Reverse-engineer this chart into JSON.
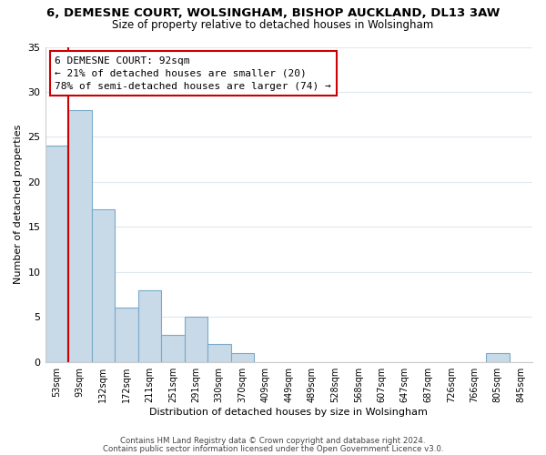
{
  "title": "6, DEMESNE COURT, WOLSINGHAM, BISHOP AUCKLAND, DL13 3AW",
  "subtitle": "Size of property relative to detached houses in Wolsingham",
  "xlabel": "Distribution of detached houses by size in Wolsingham",
  "ylabel": "Number of detached properties",
  "bin_labels": [
    "53sqm",
    "93sqm",
    "132sqm",
    "172sqm",
    "211sqm",
    "251sqm",
    "291sqm",
    "330sqm",
    "370sqm",
    "409sqm",
    "449sqm",
    "489sqm",
    "528sqm",
    "568sqm",
    "607sqm",
    "647sqm",
    "687sqm",
    "726sqm",
    "766sqm",
    "805sqm",
    "845sqm"
  ],
  "bar_values": [
    24,
    28,
    17,
    6,
    8,
    3,
    5,
    2,
    1,
    0,
    0,
    0,
    0,
    0,
    0,
    0,
    0,
    0,
    0,
    1,
    0
  ],
  "bar_color": "#c8d9e8",
  "bar_edge_color": "#7aaac8",
  "highlight_line_color": "#cc0000",
  "ylim": [
    0,
    35
  ],
  "yticks": [
    0,
    5,
    10,
    15,
    20,
    25,
    30,
    35
  ],
  "annotation_title": "6 DEMESNE COURT: 92sqm",
  "annotation_line1": "← 21% of detached houses are smaller (20)",
  "annotation_line2": "78% of semi-detached houses are larger (74) →",
  "annotation_box_color": "#ffffff",
  "annotation_box_edge_color": "#cc0000",
  "footer_line1": "Contains HM Land Registry data © Crown copyright and database right 2024.",
  "footer_line2": "Contains public sector information licensed under the Open Government Licence v3.0.",
  "background_color": "#ffffff",
  "grid_color": "#e0e8f0"
}
